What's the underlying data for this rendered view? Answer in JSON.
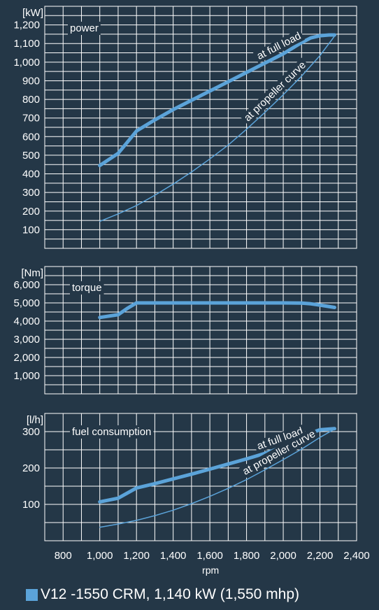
{
  "colors": {
    "background": "#243747",
    "grid": "#ffffff",
    "line": "#5ba3d9"
  },
  "legend": {
    "label": "V12 -1550 CRM, 1,140 kW (1,550 mhp)"
  },
  "chart_data": [
    {
      "type": "line",
      "name": "power",
      "unit": "[kW]",
      "xlim": [
        700,
        2400
      ],
      "ylim": [
        0,
        1300
      ],
      "yticks": [
        100,
        200,
        300,
        400,
        500,
        600,
        700,
        800,
        900,
        1000,
        1100,
        1200
      ],
      "yticklabels": [
        "100",
        "200",
        "300",
        "400",
        "500",
        "600",
        "700",
        "800",
        "900",
        "1,000",
        "1,100",
        "1,200"
      ],
      "series": [
        {
          "name": "at full load",
          "x": [
            1000,
            1100,
            1150,
            1200,
            1300,
            1400,
            1500,
            1600,
            1700,
            1800,
            1900,
            2000,
            2100,
            2150,
            2200,
            2250,
            2280
          ],
          "y": [
            445,
            510,
            570,
            630,
            690,
            745,
            795,
            845,
            895,
            945,
            995,
            1045,
            1105,
            1130,
            1142,
            1146,
            1146
          ]
        },
        {
          "name": "at propeller curve",
          "x": [
            1000,
            1100,
            1200,
            1300,
            1400,
            1500,
            1600,
            1700,
            1800,
            1900,
            2000,
            2100,
            2200,
            2280
          ],
          "y": [
            145,
            185,
            230,
            285,
            345,
            410,
            480,
            555,
            640,
            730,
            825,
            925,
            1035,
            1140
          ]
        }
      ]
    },
    {
      "type": "line",
      "name": "torque",
      "unit": "[Nm]",
      "xlim": [
        700,
        2400
      ],
      "ylim": [
        0,
        7000
      ],
      "yticks": [
        1000,
        2000,
        3000,
        4000,
        5000,
        6000
      ],
      "yticklabels": [
        "1,000",
        "2,000",
        "3,000",
        "4,000",
        "5,000",
        "6,000"
      ],
      "series": [
        {
          "name": "",
          "x": [
            1000,
            1100,
            1150,
            1200,
            1300,
            1500,
            1800,
            2000,
            2100,
            2150,
            2200,
            2280
          ],
          "y": [
            4200,
            4350,
            4700,
            5000,
            5000,
            5000,
            5000,
            5000,
            4990,
            4950,
            4880,
            4750
          ]
        }
      ]
    },
    {
      "type": "line",
      "name": "fuel consumption",
      "unit": "[l/h]",
      "xlim": [
        700,
        2400
      ],
      "xticks": [
        800,
        1000,
        1200,
        1400,
        1600,
        1800,
        2000,
        2200,
        2400
      ],
      "xticklabels": [
        "800",
        "1,000",
        "1,200",
        "1,400",
        "1,600",
        "1,800",
        "2,000",
        "2,200",
        "2,400"
      ],
      "xlabel": "rpm",
      "ylim": [
        0,
        350
      ],
      "yticks": [
        100,
        200,
        300
      ],
      "yticklabels": [
        "100",
        "200",
        "300"
      ],
      "series": [
        {
          "name": "at full load",
          "x": [
            1000,
            1100,
            1200,
            1300,
            1400,
            1500,
            1600,
            1700,
            1800,
            1900,
            2000,
            2100,
            2150,
            2200,
            2280
          ],
          "y": [
            107,
            117,
            145,
            157,
            170,
            183,
            197,
            211,
            225,
            240,
            258,
            283,
            296,
            305,
            308
          ]
        },
        {
          "name": "at propeller curve",
          "x": [
            1000,
            1100,
            1200,
            1300,
            1400,
            1500,
            1600,
            1700,
            1800,
            1900,
            2000,
            2100,
            2200,
            2280
          ],
          "y": [
            37,
            46,
            56,
            69,
            84,
            102,
            122,
            144,
            168,
            195,
            223,
            252,
            284,
            307
          ]
        }
      ]
    }
  ]
}
